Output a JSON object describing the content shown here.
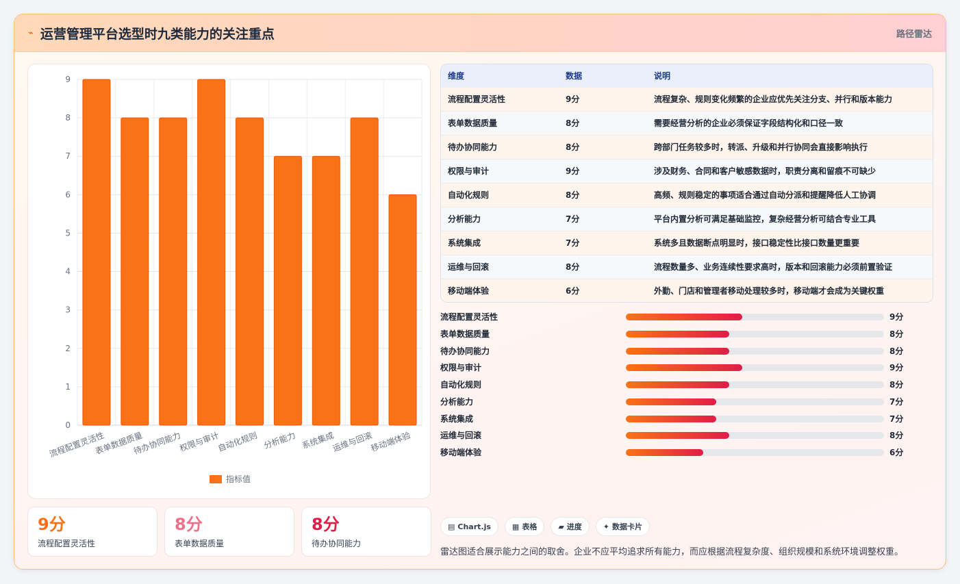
{
  "header": {
    "icon": "zap-icon",
    "title": "运营管理平台选型时九类能力的关注重点",
    "tag": "路径雷达"
  },
  "chart_data": {
    "type": "bar",
    "categories": [
      "流程配置灵活性",
      "表单数据质量",
      "待办协同能力",
      "权限与审计",
      "自动化规则",
      "分析能力",
      "系统集成",
      "运维与回滚",
      "移动端体验"
    ],
    "series": [
      {
        "name": "指标值",
        "values": [
          9,
          8,
          8,
          9,
          8,
          7,
          7,
          8,
          6
        ],
        "color": "#f97316"
      }
    ],
    "ylim": [
      0,
      9
    ],
    "yticks": [
      0,
      1,
      2,
      3,
      4,
      5,
      6,
      7,
      8,
      9
    ],
    "grid": true,
    "legend": "bottom"
  },
  "table": {
    "headers": [
      "维度",
      "数据",
      "说明"
    ],
    "rows": [
      [
        "流程配置灵活性",
        "9分",
        "流程复杂、规则变化频繁的企业应优先关注分支、并行和版本能力"
      ],
      [
        "表单数据质量",
        "8分",
        "需要经营分析的企业必须保证字段结构化和口径一致"
      ],
      [
        "待办协同能力",
        "8分",
        "跨部门任务较多时，转派、升级和并行协同会直接影响执行"
      ],
      [
        "权限与审计",
        "9分",
        "涉及财务、合同和客户敏感数据时，职责分离和留痕不可缺少"
      ],
      [
        "自动化规则",
        "8分",
        "高频、规则稳定的事项适合通过自动分派和提醒降低人工协调"
      ],
      [
        "分析能力",
        "7分",
        "平台内置分析可满足基础监控，复杂经营分析可结合专业工具"
      ],
      [
        "系统集成",
        "7分",
        "系统多且数据断点明显时，接口稳定性比接口数量更重要"
      ],
      [
        "运维与回滚",
        "8分",
        "流程数量多、业务连续性要求高时，版本和回滚能力必须前置验证"
      ],
      [
        "移动端体验",
        "6分",
        "外勤、门店和管理者移动处理较多时，移动端才会成为关键权重"
      ]
    ]
  },
  "progress": {
    "max": 20,
    "items": [
      {
        "label": "流程配置灵活性",
        "value": 9,
        "text": "9分"
      },
      {
        "label": "表单数据质量",
        "value": 8,
        "text": "8分"
      },
      {
        "label": "待办协同能力",
        "value": 8,
        "text": "8分"
      },
      {
        "label": "权限与审计",
        "value": 9,
        "text": "9分"
      },
      {
        "label": "自动化规则",
        "value": 8,
        "text": "8分"
      },
      {
        "label": "分析能力",
        "value": 7,
        "text": "7分"
      },
      {
        "label": "系统集成",
        "value": 7,
        "text": "7分"
      },
      {
        "label": "运维与回滚",
        "value": 8,
        "text": "8分"
      },
      {
        "label": "移动端体验",
        "value": 6,
        "text": "6分"
      }
    ]
  },
  "stats": [
    {
      "value": "9分",
      "label": "流程配置灵活性",
      "color": "#f97316"
    },
    {
      "value": "8分",
      "label": "表单数据质量",
      "color": "#f0708a"
    },
    {
      "value": "8分",
      "label": "待办协同能力",
      "color": "#e11d48"
    }
  ],
  "pills": [
    {
      "icon": "▤",
      "icon_name": "chart-icon",
      "label": "Chart.js"
    },
    {
      "icon": "▦",
      "icon_name": "table-icon",
      "label": "表格"
    },
    {
      "icon": "▰",
      "icon_name": "progress-icon",
      "label": "进度"
    },
    {
      "icon": "✦",
      "icon_name": "sparkle-icon",
      "label": "数据卡片"
    }
  ],
  "note": "雷达图适合展示能力之间的取舍。企业不应平均追求所有能力，而应根据流程复杂度、组织规模和系统环境调整权重。"
}
